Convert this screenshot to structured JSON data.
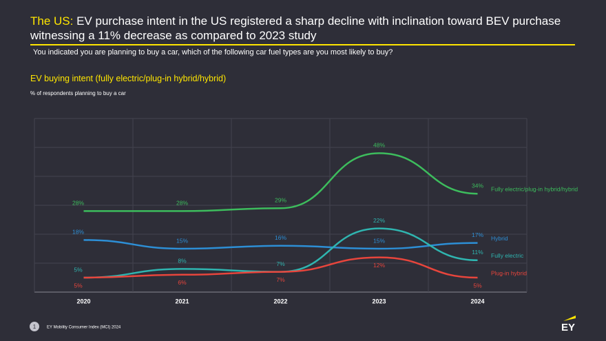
{
  "header": {
    "title_prefix": "The US:",
    "title": "EV purchase intent in the US registered a sharp decline with inclination toward BEV purchase witnessing a 11% decrease as compared to 2023 study",
    "question": "You indicated you are planning to buy a car, which of the following car fuel types are you most likely to buy?"
  },
  "chart_data": {
    "type": "line",
    "title": "EV buying intent (fully electric/plug-in hybrid/hybrid)",
    "y_axis_label": "% of respondents planning to buy a car",
    "categories": [
      "2020",
      "2021",
      "2022",
      "2023",
      "2024"
    ],
    "series": [
      {
        "name": "Fully electric/plug-in hybrid/hybrid",
        "color": "#3dbd5d",
        "values": [
          28,
          28,
          29,
          48,
          34
        ],
        "value_labels": [
          "28%",
          "28%",
          "29%",
          "48%",
          "34%"
        ]
      },
      {
        "name": "Hybrid",
        "color": "#2d8fd6",
        "values": [
          18,
          15,
          16,
          15,
          17
        ],
        "value_labels": [
          "18%",
          "15%",
          "16%",
          "15%",
          "17%"
        ]
      },
      {
        "name": "Fully electric",
        "color": "#2fb5b0",
        "values": [
          5,
          8,
          7,
          22,
          11
        ],
        "value_labels": [
          "5%",
          "8%",
          "7%",
          "22%",
          "11%"
        ]
      },
      {
        "name": "Plug-in hybrid",
        "color": "#e8453c",
        "values": [
          5,
          6,
          7,
          12,
          5
        ],
        "value_labels": [
          "5%",
          "6%",
          "7%",
          "12%",
          "5%"
        ]
      }
    ],
    "ylim": [
      0,
      60
    ],
    "yticks": [
      0,
      10,
      20,
      30,
      40,
      50,
      60
    ],
    "grid": true
  },
  "footer": {
    "page": "1",
    "source": "EY Mobility Consumer Index (MCI) 2024",
    "logo": "EY"
  }
}
